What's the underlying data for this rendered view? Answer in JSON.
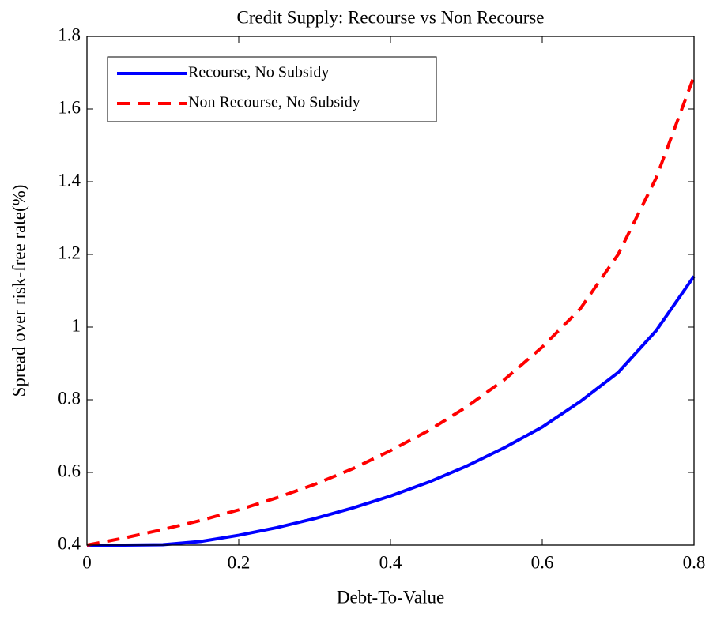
{
  "chart_data": {
    "type": "line",
    "title": "Credit Supply: Recourse vs Non Recourse",
    "x_label": "Debt-To-Value",
    "y_label": "Spread over risk-free rate(%)",
    "x": [
      0,
      0.05,
      0.1,
      0.15,
      0.2,
      0.25,
      0.3,
      0.35,
      0.4,
      0.45,
      0.5,
      0.55,
      0.6,
      0.65,
      0.7,
      0.75,
      0.8
    ],
    "series": [
      {
        "name": "Recourse, No Subsidy",
        "color": "#0000ff",
        "dash": "solid",
        "values": [
          0.4,
          0.4,
          0.401,
          0.41,
          0.427,
          0.448,
          0.473,
          0.502,
          0.535,
          0.573,
          0.617,
          0.668,
          0.725,
          0.795,
          0.875,
          0.99,
          1.14
        ]
      },
      {
        "name": "Non Recourse, No Subsidy",
        "color": "#ff0000",
        "dash": "dashed",
        "values": [
          0.4,
          0.42,
          0.443,
          0.468,
          0.497,
          0.53,
          0.567,
          0.61,
          0.66,
          0.715,
          0.78,
          0.855,
          0.945,
          1.05,
          1.2,
          1.41,
          1.69
        ]
      }
    ],
    "xlim": [
      0,
      0.8
    ],
    "xticks": [
      0,
      0.2,
      0.4,
      0.6,
      0.8
    ],
    "ylim": [
      0.4,
      1.8
    ],
    "yticks": [
      0.4,
      0.6,
      0.8,
      1,
      1.2,
      1.4,
      1.6,
      1.8
    ],
    "legend": "upper left",
    "grid": false
  }
}
